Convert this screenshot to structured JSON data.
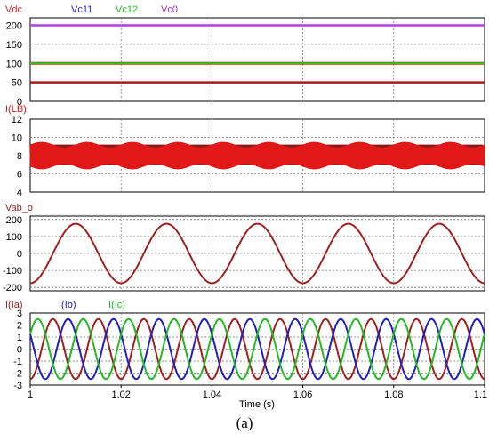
{
  "figure": {
    "caption": "(a)"
  },
  "chart_data": [
    {
      "type": "line",
      "panel": "dc-voltages",
      "ylim": [
        0,
        220
      ],
      "yticks": [
        0,
        50,
        100,
        150,
        200
      ],
      "xlim": [
        1,
        1.1
      ],
      "grid": true,
      "legend_placement": "top-left",
      "series": [
        {
          "name": "Vdc",
          "color": "#d62a2a",
          "x": [
            1,
            1.1
          ],
          "y": [
            200,
            200
          ]
        },
        {
          "name": "Vc11",
          "color": "#1a1aee",
          "x": [
            1,
            1.1
          ],
          "y": [
            100,
            100
          ]
        },
        {
          "name": "Vc12",
          "color": "#22bb22",
          "x": [
            1,
            1.1
          ],
          "y": [
            100,
            100
          ]
        },
        {
          "name": "Vc0",
          "color": "#b030d0",
          "x": [
            1,
            1.1
          ],
          "y": [
            50,
            50
          ]
        }
      ],
      "series_colors_actual": {
        "Vdc": "#b040e0",
        "Vc11": "#ff0000",
        "Vc12": "#22cc22",
        "Vc0": "#aa1a1a"
      }
    },
    {
      "type": "line",
      "panel": "inductor-current",
      "ylim": [
        4,
        12
      ],
      "yticks": [
        4,
        6,
        8,
        10,
        12
      ],
      "xlim": [
        1,
        1.1
      ],
      "grid": true,
      "series": [
        {
          "name": "I(LB)",
          "color": "#e01818",
          "mean": 8,
          "ripple_band": [
            6.6,
            9.6
          ]
        }
      ]
    },
    {
      "type": "line",
      "panel": "output-voltage",
      "ylim": [
        -220,
        220
      ],
      "yticks": [
        -200,
        -100,
        0,
        100,
        200
      ],
      "xlim": [
        1,
        1.1
      ],
      "grid": true,
      "series": [
        {
          "name": "Vab_o",
          "color": "#a02020",
          "amplitude": 175,
          "frequency_hz": 50,
          "phase_deg": -90
        }
      ]
    },
    {
      "type": "line",
      "panel": "phase-currents",
      "ylim": [
        -3,
        3
      ],
      "yticks": [
        -3,
        -2,
        -1,
        0,
        1,
        2,
        3
      ],
      "xlim": [
        1,
        1.1
      ],
      "xticks": [
        1,
        1.02,
        1.04,
        1.06,
        1.08,
        1.1
      ],
      "xlabel": "Time (s)",
      "grid": true,
      "series": [
        {
          "name": "I(Ia)",
          "color": "#a02020",
          "amplitude": 2.5,
          "frequency_hz": 100,
          "phase_deg": -90
        },
        {
          "name": "I(Ib)",
          "color": "#2020c0",
          "amplitude": 2.5,
          "frequency_hz": 100,
          "phase_deg": 150
        },
        {
          "name": "I(Ic)",
          "color": "#22bb22",
          "amplitude": 2.5,
          "frequency_hz": 100,
          "phase_deg": 30
        }
      ]
    }
  ],
  "tick_labels": {
    "p1": [
      "200",
      "150",
      "100",
      "50",
      "0"
    ],
    "p2": [
      "12",
      "10",
      "8",
      "6",
      "4"
    ],
    "p3": [
      "200",
      "100",
      "0",
      "-100",
      "-200"
    ],
    "p4": [
      "3",
      "2",
      "1",
      "0",
      "-1",
      "-2",
      "-3"
    ],
    "x": [
      "1",
      "1.02",
      "1.04",
      "1.06",
      "1.08",
      "1.1"
    ]
  }
}
